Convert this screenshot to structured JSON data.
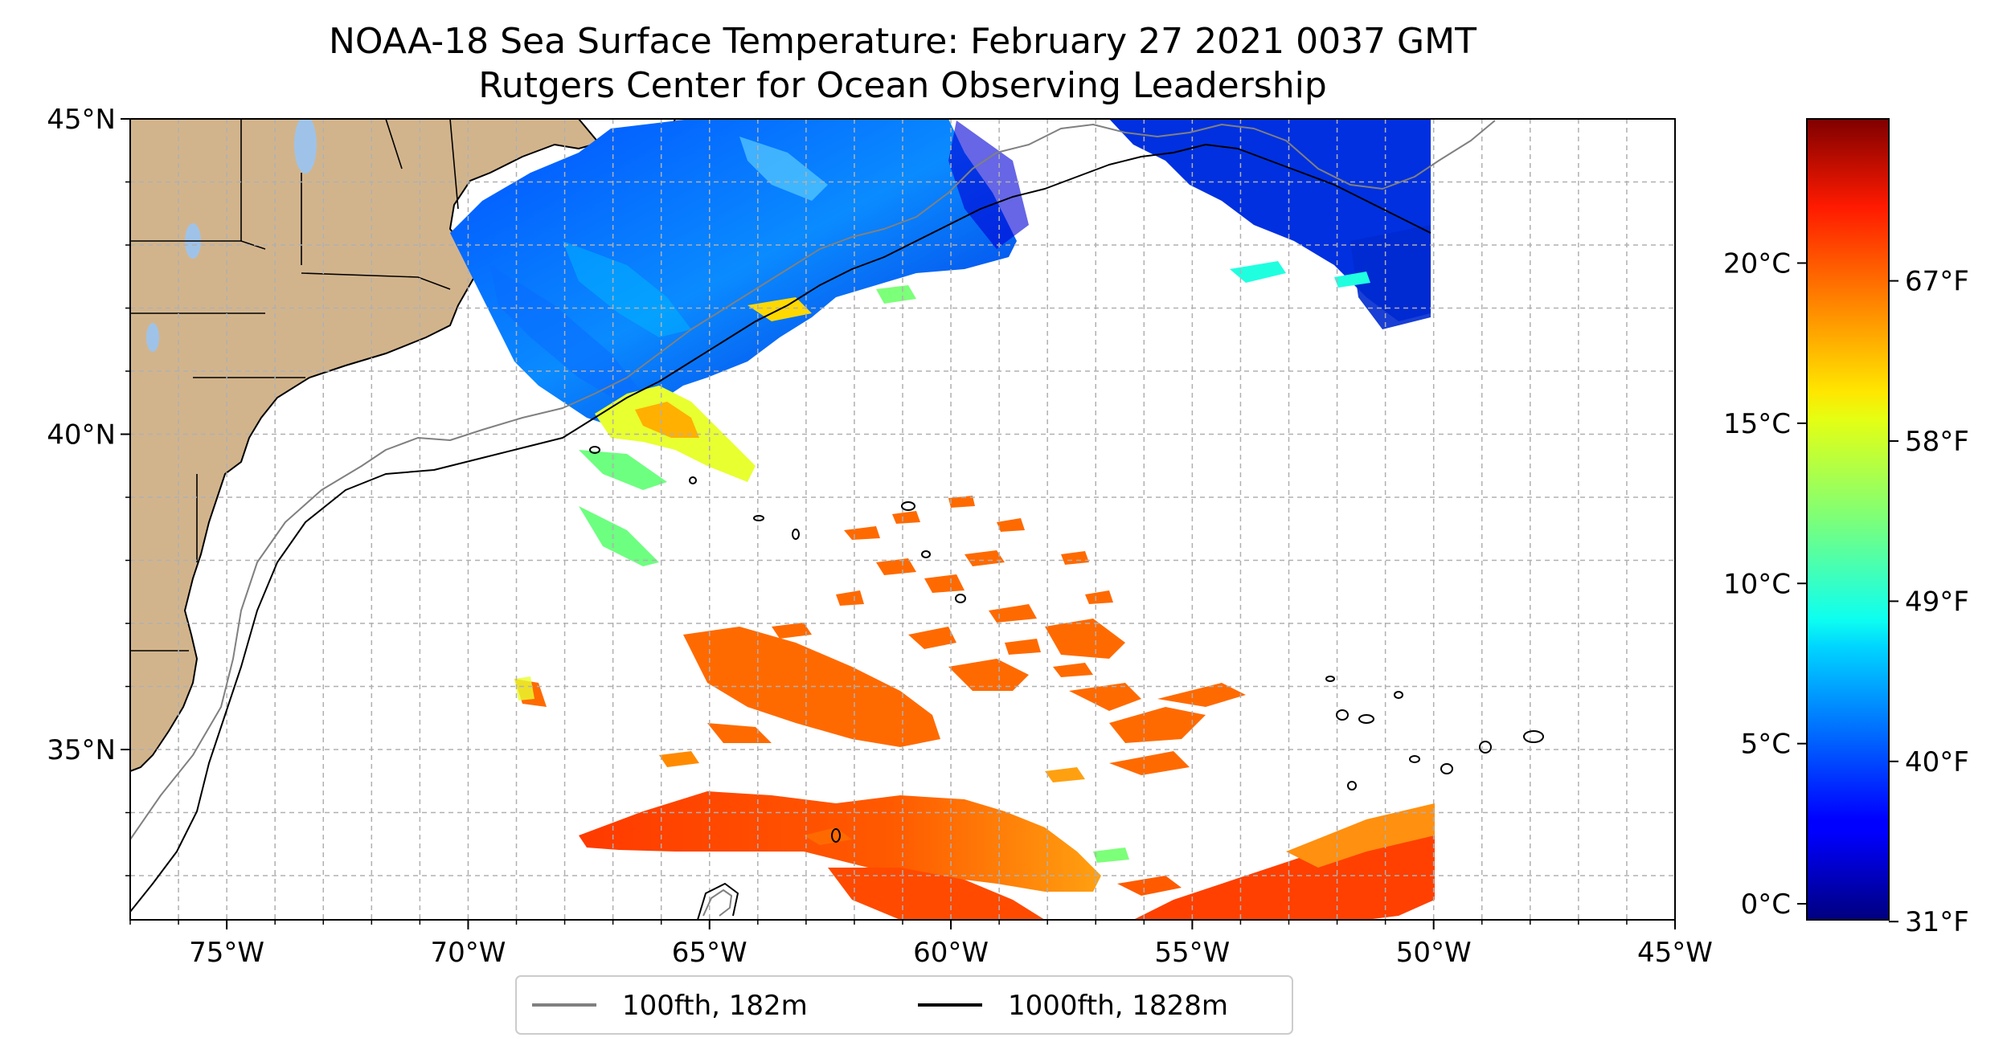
{
  "title": {
    "line1": "NOAA-18 Sea Surface Temperature: February 27 2021 0037 GMT",
    "line2": "Rutgers Center for Ocean Observing Leadership"
  },
  "map": {
    "lon_range": [
      -77,
      -45
    ],
    "lat_range": [
      32.3,
      45
    ],
    "lon_ticks": [
      {
        "value": -75,
        "label": "75°W"
      },
      {
        "value": -70,
        "label": "70°W"
      },
      {
        "value": -65,
        "label": "65°W"
      },
      {
        "value": -60,
        "label": "60°W"
      },
      {
        "value": -55,
        "label": "55°W"
      },
      {
        "value": -50,
        "label": "50°W"
      },
      {
        "value": -45,
        "label": "45°W"
      }
    ],
    "lat_ticks": [
      {
        "value": 45,
        "label": "45°N"
      },
      {
        "value": 40,
        "label": "40°N"
      },
      {
        "value": 35,
        "label": "35°N"
      }
    ],
    "grid": true,
    "land_color": "#d2b48c",
    "lake_color": "#9fc3e8"
  },
  "legend": {
    "items": [
      {
        "label": "100fth, 182m",
        "color": "#808080"
      },
      {
        "label": "1000fth, 1828m",
        "color": "#000000"
      }
    ]
  },
  "colorbar": {
    "colormap": "jet",
    "range_c": [
      -0.5,
      24.5
    ],
    "celsius_ticks": [
      {
        "value": 0,
        "label": "0°C"
      },
      {
        "value": 5,
        "label": "5°C"
      },
      {
        "value": 10,
        "label": "10°C"
      },
      {
        "value": 15,
        "label": "15°C"
      },
      {
        "value": 20,
        "label": "20°C"
      }
    ],
    "fahrenheit_ticks": [
      {
        "value": 31,
        "label": "31°F"
      },
      {
        "value": 40,
        "label": "40°F"
      },
      {
        "value": 49,
        "label": "49°F"
      },
      {
        "value": 58,
        "label": "58°F"
      },
      {
        "value": 67,
        "label": "67°F"
      }
    ]
  }
}
